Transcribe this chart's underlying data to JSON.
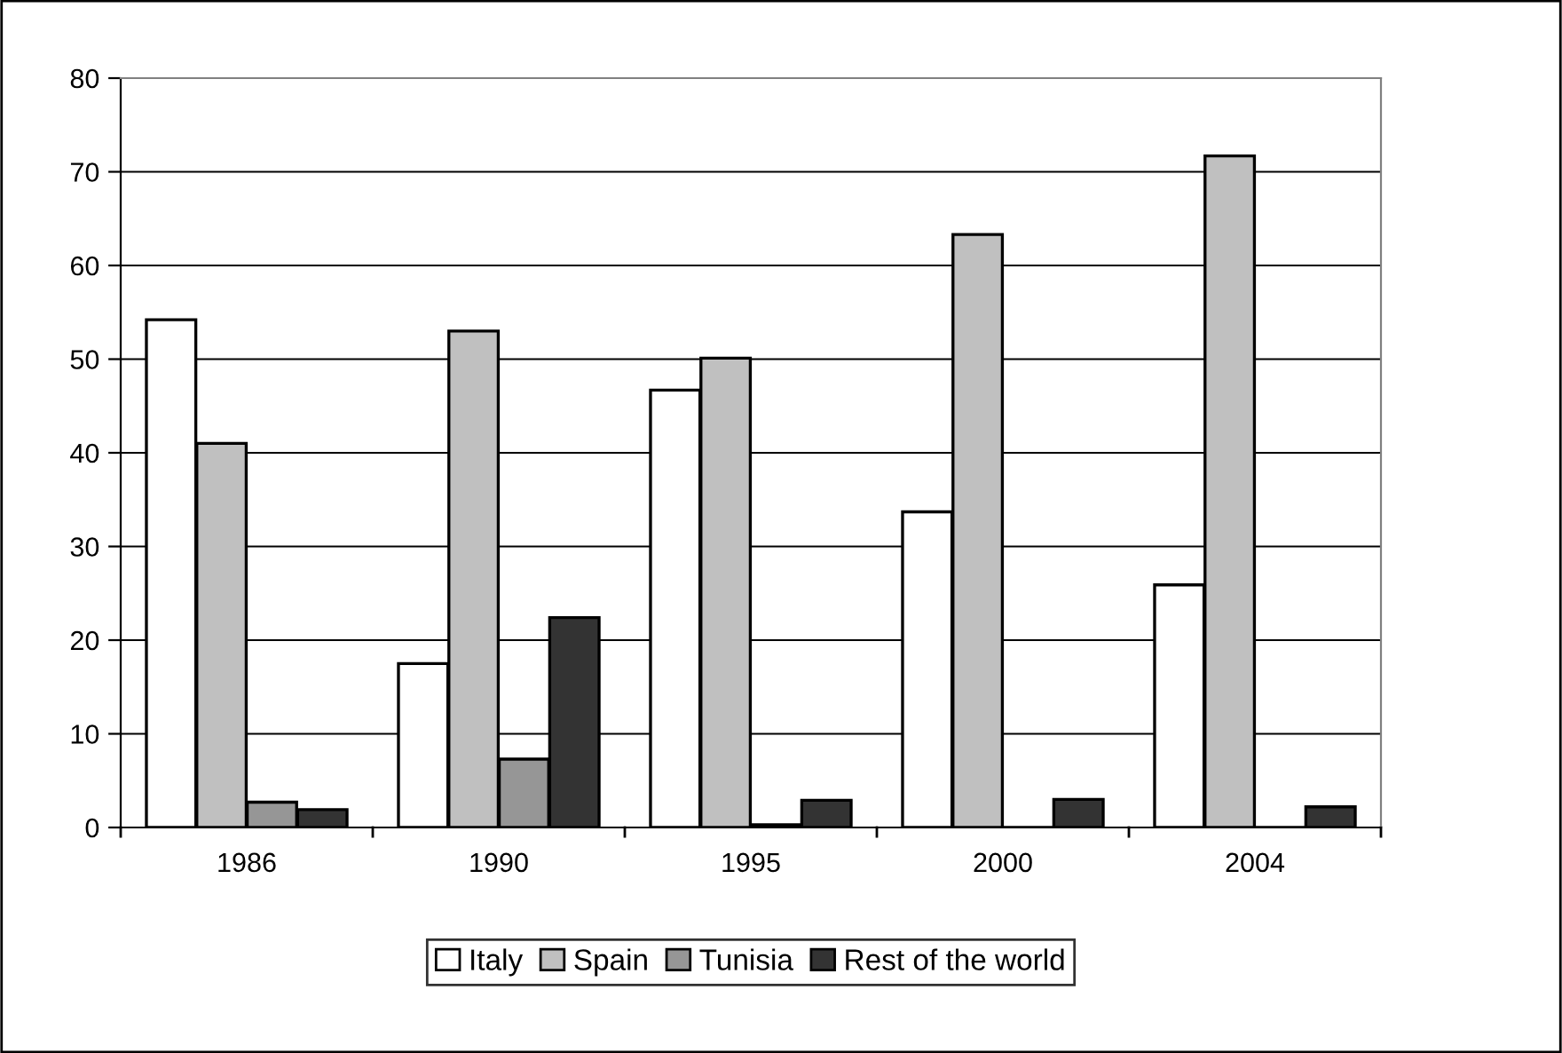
{
  "chart_data": {
    "type": "bar",
    "categories": [
      "1986",
      "1990",
      "1995",
      "2000",
      "2004"
    ],
    "series": [
      {
        "name": "Italy",
        "color": "#ffffff",
        "values": [
          54.2,
          17.5,
          46.7,
          33.7,
          25.9
        ]
      },
      {
        "name": "Spain",
        "color": "#c0c0c0",
        "values": [
          41.0,
          53.0,
          50.1,
          63.3,
          71.7
        ]
      },
      {
        "name": "Tunisia",
        "color": "#969696",
        "values": [
          2.7,
          7.3,
          0.3,
          null,
          null
        ]
      },
      {
        "name": "Rest of the world",
        "color": "#333333",
        "values": [
          1.9,
          22.4,
          2.9,
          3.0,
          2.2
        ]
      }
    ],
    "ylim": [
      0,
      80
    ],
    "yticks": [
      0,
      10,
      20,
      30,
      40,
      50,
      60,
      70,
      80
    ],
    "grid": "y",
    "legend": "bottom"
  }
}
